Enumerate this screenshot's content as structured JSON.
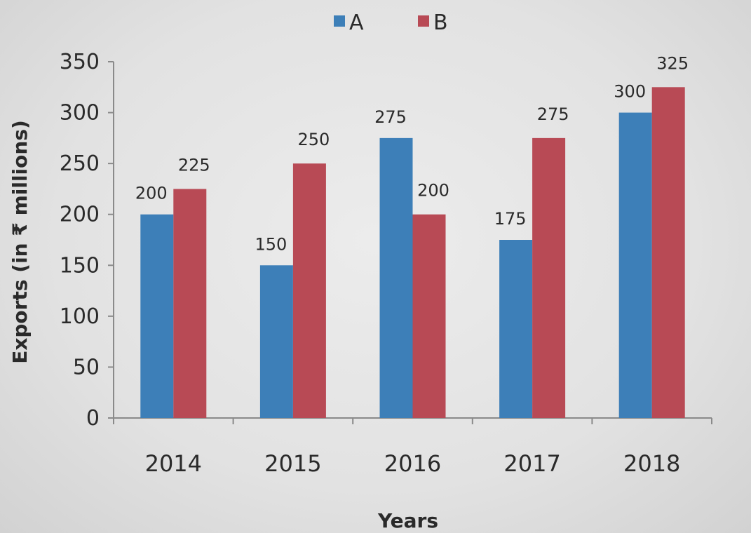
{
  "chart_data": {
    "type": "bar",
    "categories": [
      "2014",
      "2015",
      "2016",
      "2017",
      "2018"
    ],
    "series": [
      {
        "name": "A",
        "values": [
          200,
          150,
          275,
          175,
          300
        ],
        "color": "#3d7fb8"
      },
      {
        "name": "B",
        "values": [
          225,
          250,
          200,
          275,
          325
        ],
        "color": "#b84a55"
      }
    ],
    "xlabel": "Years",
    "ylabel": "Exports (in ₹ millions)",
    "ylim": [
      0,
      350
    ],
    "yticks": [
      0,
      50,
      100,
      150,
      200,
      250,
      300,
      350
    ],
    "legend": "top-center",
    "grid": false,
    "data_labels": true
  }
}
